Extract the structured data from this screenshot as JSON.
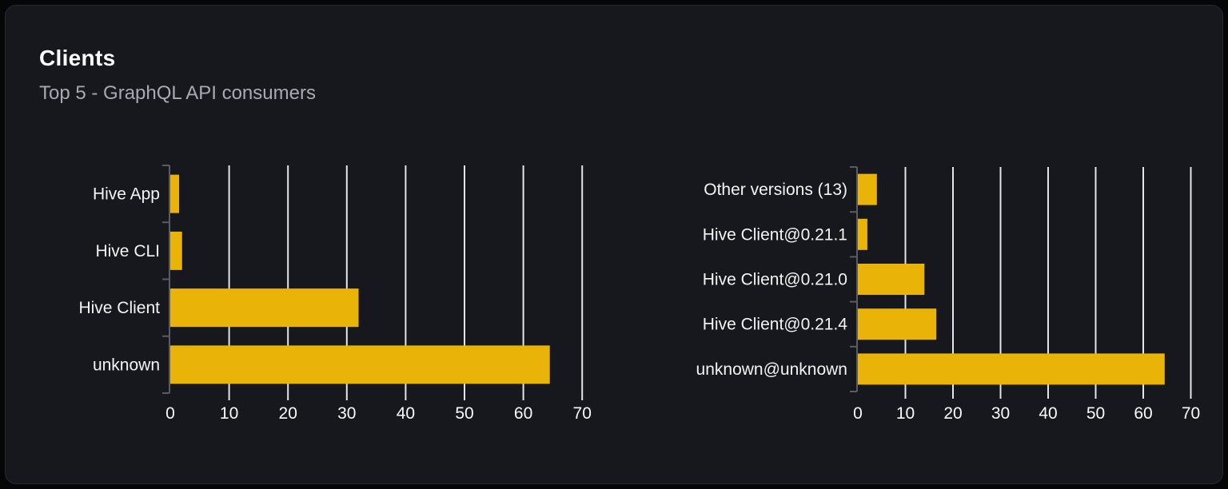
{
  "card": {
    "title": "Clients",
    "subtitle": "Top 5 - GraphQL API consumers"
  },
  "colors": {
    "page_bg": "#050607",
    "card_bg": "#16181d",
    "card_border": "#2a2d33",
    "bar": "#eab308",
    "grid_line": "#e2e5ea",
    "axis_line": "#585c64",
    "tick_text": "#fafafa",
    "category_text": "#f4f4f5",
    "title_text": "#ffffff",
    "subtitle_text": "#a6abb3"
  },
  "chart_data": [
    {
      "type": "bar",
      "orientation": "horizontal",
      "name": "clients-top5",
      "categories": [
        "Hive App",
        "Hive CLI",
        "Hive Client",
        "unknown"
      ],
      "values": [
        1.5,
        2,
        32,
        64.5
      ],
      "xlim": [
        0,
        70
      ],
      "xticks": [
        0,
        10,
        20,
        30,
        40,
        50,
        60,
        70
      ],
      "grid": true,
      "legend": "none",
      "bar_color": "#eab308"
    },
    {
      "type": "bar",
      "orientation": "horizontal",
      "name": "client-versions-top5",
      "categories": [
        "Other versions (13)",
        "Hive Client@0.21.1",
        "Hive Client@0.21.0",
        "Hive Client@0.21.4",
        "unknown@unknown"
      ],
      "values": [
        4,
        2,
        14,
        16.5,
        64.5
      ],
      "xlim": [
        0,
        70
      ],
      "xticks": [
        0,
        10,
        20,
        30,
        40,
        50,
        60,
        70
      ],
      "grid": true,
      "legend": "none",
      "bar_color": "#eab308"
    }
  ]
}
